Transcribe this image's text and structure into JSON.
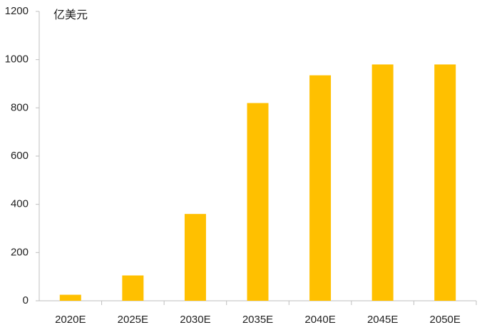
{
  "chart_data": {
    "type": "bar",
    "unit_label": "亿美元",
    "categories": [
      "2020E",
      "2025E",
      "2030E",
      "2035E",
      "2040E",
      "2045E",
      "2050E"
    ],
    "values": [
      25,
      105,
      360,
      820,
      935,
      980,
      980
    ],
    "color": "#ffc000",
    "ylim": [
      0,
      1200
    ],
    "yticks": [
      0,
      200,
      400,
      600,
      800,
      1000,
      1200
    ],
    "grid": false
  }
}
